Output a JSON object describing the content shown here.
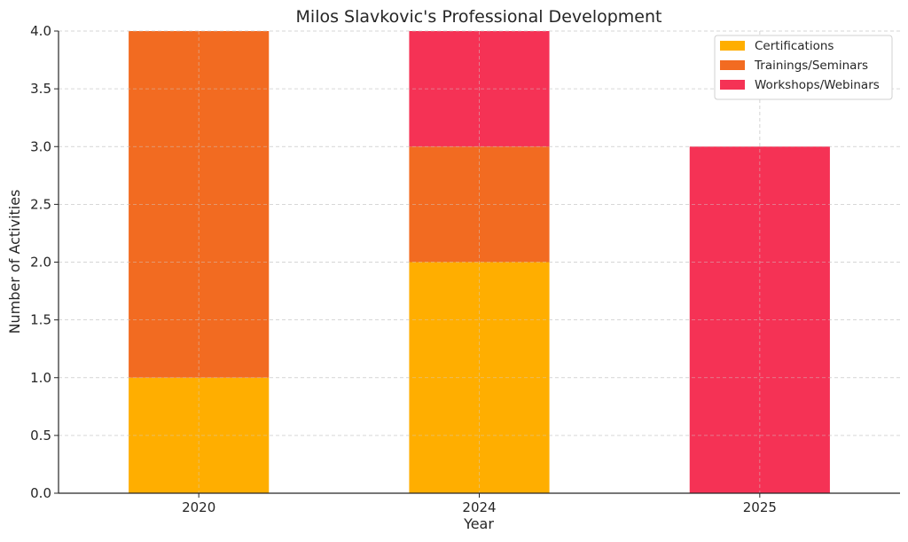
{
  "chart_data": {
    "type": "bar",
    "stacked": true,
    "title": "Milos Slavkovic's Professional Development",
    "xlabel": "Year",
    "ylabel": "Number of Activities",
    "categories": [
      "2020",
      "2024",
      "2025"
    ],
    "series": [
      {
        "name": "Certifications",
        "color": "#FFAE00",
        "values": [
          1,
          2,
          0
        ]
      },
      {
        "name": "Trainings/Seminars",
        "color": "#F26B21",
        "values": [
          3,
          1,
          0
        ]
      },
      {
        "name": "Workshops/Webinars",
        "color": "#F53255",
        "values": [
          0,
          1,
          3
        ]
      }
    ],
    "ylim": [
      0,
      4
    ],
    "yticks": [
      "0.0",
      "0.5",
      "1.0",
      "1.5",
      "2.0",
      "2.5",
      "3.0",
      "3.5",
      "4.0"
    ],
    "grid": true,
    "legend_position": "top-right"
  }
}
